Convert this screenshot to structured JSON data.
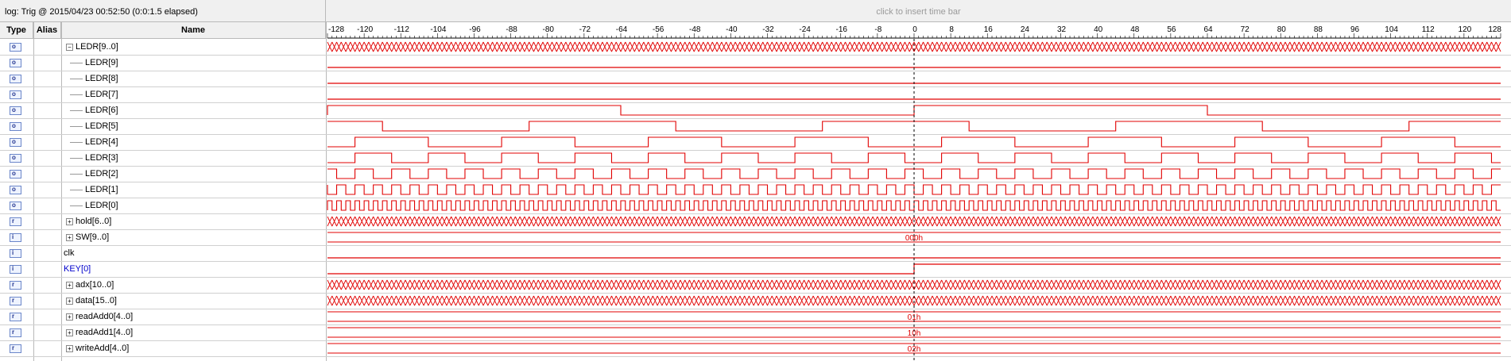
{
  "log_title": "log: Trig @ 2015/04/23 00:52:50 (0:0:1.5 elapsed)",
  "insert_hint": "click to insert time bar",
  "columns": {
    "type": "Type",
    "alias": "Alias",
    "name": "Name"
  },
  "time_axis": {
    "ticks": [
      "-128",
      "-120",
      "-112",
      "-104",
      "-96",
      "-88",
      "-80",
      "-72",
      "-64",
      "-56",
      "-48",
      "-40",
      "-32",
      "-24",
      "-16",
      "-8",
      "0",
      "8",
      "16",
      "24",
      "32",
      "40",
      "48",
      "56",
      "64",
      "72",
      "80",
      "88",
      "96",
      "104",
      "112",
      "120",
      "128"
    ],
    "range": [
      -128,
      128
    ],
    "trigger_at": 0
  },
  "colors": {
    "wave": "#e10000",
    "trigger": "#000000",
    "alias_blue": "#0000cc"
  },
  "signals": [
    {
      "name": "LEDR[9..0]",
      "type": "out",
      "expander": "minus",
      "indent": 0,
      "alias_color": false,
      "wave": "bus",
      "value": ""
    },
    {
      "name": "LEDR[9]",
      "type": "out",
      "expander": "",
      "indent": 1,
      "alias_color": false,
      "wave": "low",
      "value": ""
    },
    {
      "name": "LEDR[8]",
      "type": "out",
      "expander": "",
      "indent": 1,
      "alias_color": false,
      "wave": "low",
      "value": ""
    },
    {
      "name": "LEDR[7]",
      "type": "out",
      "expander": "",
      "indent": 1,
      "alias_color": false,
      "wave": "low",
      "value": ""
    },
    {
      "name": "LEDR[6]",
      "type": "out",
      "expander": "",
      "indent": 1,
      "alias_color": false,
      "wave": "clk",
      "period": 128,
      "phase": 0,
      "value": ""
    },
    {
      "name": "LEDR[5]",
      "type": "out",
      "expander": "",
      "indent": 1,
      "alias_color": false,
      "wave": "clk",
      "period": 64,
      "phase": 44,
      "value": ""
    },
    {
      "name": "LEDR[4]",
      "type": "out",
      "expander": "",
      "indent": 1,
      "alias_color": false,
      "wave": "clk",
      "period": 32,
      "phase": 6,
      "value": ""
    },
    {
      "name": "LEDR[3]",
      "type": "out",
      "expander": "",
      "indent": 1,
      "alias_color": false,
      "wave": "clk",
      "period": 16,
      "phase": 6,
      "value": ""
    },
    {
      "name": "LEDR[2]",
      "type": "out",
      "expander": "",
      "indent": 1,
      "alias_color": false,
      "wave": "clk",
      "period": 8,
      "phase": 6,
      "value": ""
    },
    {
      "name": "LEDR[1]",
      "type": "out",
      "expander": "",
      "indent": 1,
      "alias_color": false,
      "wave": "clk",
      "period": 4,
      "phase": 2,
      "value": ""
    },
    {
      "name": "LEDR[0]",
      "type": "out",
      "expander": "",
      "indent": 1,
      "alias_color": false,
      "wave": "clk",
      "period": 2,
      "phase": 0,
      "value": ""
    },
    {
      "name": "hold[6..0]",
      "type": "reg",
      "expander": "plus",
      "indent": 0,
      "alias_color": false,
      "wave": "bus",
      "value": ""
    },
    {
      "name": "SW[9..0]",
      "type": "in",
      "expander": "plus",
      "indent": 0,
      "alias_color": false,
      "wave": "const",
      "value": "000h"
    },
    {
      "name": "clk",
      "type": "in",
      "expander": "",
      "indent": -1,
      "alias_color": false,
      "wave": "low",
      "value": ""
    },
    {
      "name": "KEY[0]",
      "type": "in",
      "expander": "",
      "indent": -1,
      "alias_color": true,
      "wave": "step",
      "value": ""
    },
    {
      "name": "adx[10..0]",
      "type": "reg",
      "expander": "plus",
      "indent": 0,
      "alias_color": false,
      "wave": "bus",
      "value": ""
    },
    {
      "name": "data[15..0]",
      "type": "reg",
      "expander": "plus",
      "indent": 0,
      "alias_color": false,
      "wave": "bus",
      "value": ""
    },
    {
      "name": "readAdd0[4..0]",
      "type": "reg",
      "expander": "plus",
      "indent": 0,
      "alias_color": false,
      "wave": "const",
      "value": "01h"
    },
    {
      "name": "readAdd1[4..0]",
      "type": "reg",
      "expander": "plus",
      "indent": 0,
      "alias_color": false,
      "wave": "const",
      "value": "10h"
    },
    {
      "name": "writeAdd[4..0]",
      "type": "reg",
      "expander": "plus",
      "indent": 0,
      "alias_color": false,
      "wave": "const",
      "value": "02h"
    }
  ]
}
